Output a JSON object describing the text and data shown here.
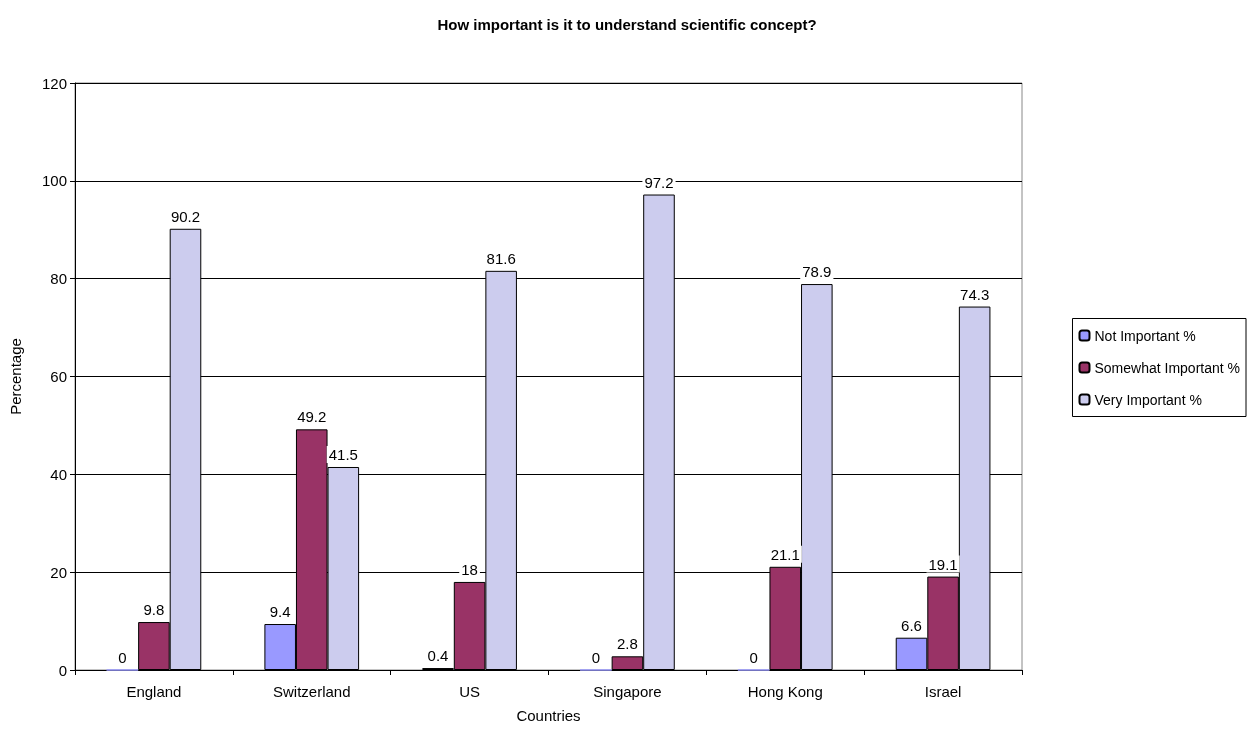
{
  "chart_data": {
    "type": "bar",
    "title": "How important is it to understand scientific concept?",
    "xlabel": "Countries",
    "ylabel": "Percentage",
    "categories": [
      "England",
      "Switzerland",
      "US",
      "Singapore",
      "Hong Kong",
      "Israel"
    ],
    "series": [
      {
        "name": "Not Important %",
        "color": "#9999ff",
        "values": [
          0,
          9.4,
          0.4,
          0,
          0,
          6.6
        ]
      },
      {
        "name": "Somewhat Important %",
        "color": "#993366",
        "values": [
          9.8,
          49.2,
          18,
          2.8,
          21.1,
          19.1
        ]
      },
      {
        "name": "Very Important %",
        "color": "#ccccee",
        "values": [
          90.2,
          41.5,
          81.6,
          97.2,
          78.9,
          74.3
        ]
      }
    ],
    "ylim": [
      0,
      120
    ],
    "yticks": [
      0,
      20,
      40,
      60,
      80,
      100,
      120
    ],
    "grid": "y",
    "legend": "right",
    "data_labels": true
  }
}
